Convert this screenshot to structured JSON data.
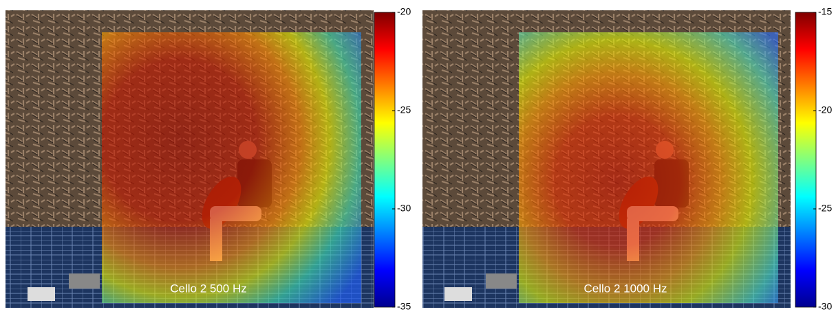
{
  "panels": [
    {
      "caption": "Cello 2 500 Hz",
      "colorbar": {
        "lim": [
          -35,
          -20
        ],
        "ticks": [
          -35,
          -30,
          -25,
          -20
        ]
      }
    },
    {
      "caption": "Cello 2 1000 Hz",
      "colorbar": {
        "lim": [
          -30,
          -15
        ],
        "ticks": [
          -30,
          -25,
          -20,
          -15
        ]
      }
    }
  ]
}
